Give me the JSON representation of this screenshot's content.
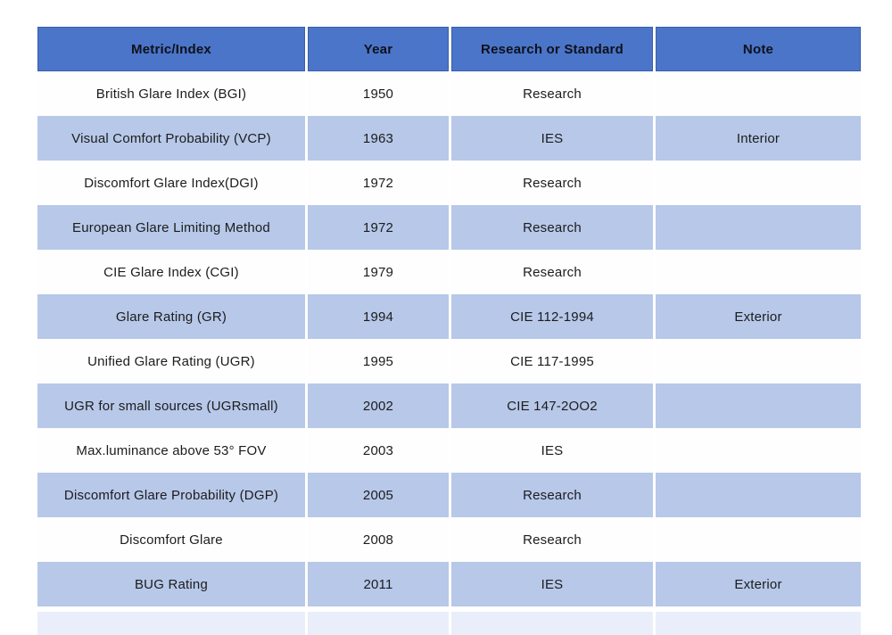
{
  "chart_data": {
    "type": "table",
    "title": "",
    "columns": [
      "Metric/Index",
      "Year",
      "Research or Standard",
      "Note"
    ],
    "rows": [
      {
        "metric": "British Glare Index (BGI)",
        "year": "1950",
        "standard": "Research",
        "note": ""
      },
      {
        "metric": "Visual Comfort Probability (VCP)",
        "year": "1963",
        "standard": "IES",
        "note": "Interior"
      },
      {
        "metric": "Discomfort Glare Index(DGI)",
        "year": "1972",
        "standard": "Research",
        "note": ""
      },
      {
        "metric": "European Glare Limiting Method",
        "year": "1972",
        "standard": "Research",
        "note": ""
      },
      {
        "metric": "CIE Glare Index (CGI)",
        "year": "1979",
        "standard": "Research",
        "note": ""
      },
      {
        "metric": "Glare Rating (GR)",
        "year": "1994",
        "standard": "CIE 112-1994",
        "note": "Exterior"
      },
      {
        "metric": "Unified Glare Rating (UGR)",
        "year": "1995",
        "standard": "CIE 117-1995",
        "note": ""
      },
      {
        "metric": "UGR for small sources (UGRsmall)",
        "year": "2002",
        "standard": "CIE 147-2OO2",
        "note": ""
      },
      {
        "metric": "Max.luminance above 53° FOV",
        "year": "2003",
        "standard": "IES",
        "note": ""
      },
      {
        "metric": "Discomfort Glare Probability (DGP)",
        "year": "2005",
        "standard": "Research",
        "note": ""
      },
      {
        "metric": "Discomfort Glare",
        "year": "2008",
        "standard": "Research",
        "note": ""
      },
      {
        "metric": "BUG Rating",
        "year": "2011",
        "standard": "IES",
        "note": "Exterior"
      }
    ],
    "partial_row_at_bottom": true,
    "layout_hints": {
      "banding": "alternating white and light-blue rows starting with white",
      "alignment": "all cells center-aligned"
    }
  },
  "colors": {
    "page_bg": "#ffffff",
    "header_bg": "#4a75c9",
    "header_border": "#3a5ea8",
    "header_text": "#10101a",
    "row_bg": "#fefefe",
    "row_alt_bg": "#b7c8e9",
    "partial_row_bg": "#e9eefa",
    "text": "#1c1c1c"
  }
}
